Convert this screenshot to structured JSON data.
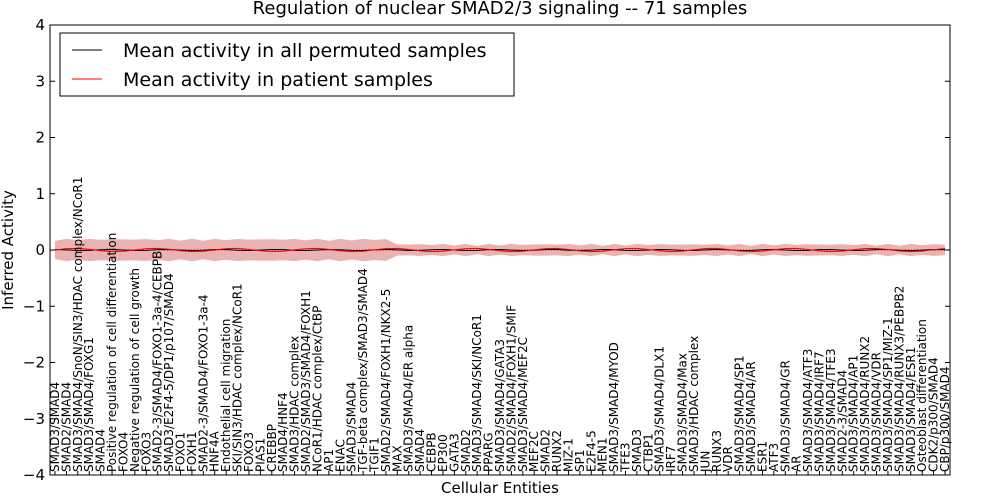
{
  "chart_data": {
    "type": "line",
    "title": "Regulation of nuclear SMAD2/3 signaling -- 71 samples",
    "xlabel": "Cellular Entities",
    "ylabel": "Inferred Activity",
    "ylim": [
      -4,
      4
    ],
    "yticks": [
      "4",
      "3",
      "2",
      "1",
      "0",
      "−1",
      "−2",
      "−3",
      "−4"
    ],
    "legend_position": "top-left",
    "grid": false,
    "series": [
      {
        "name": "Mean activity in all permuted samples",
        "color": "#000000"
      },
      {
        "name": "Mean activity in patient samples",
        "color": "#ff0000"
      }
    ],
    "categories": [
      "SMAD3/SMAD4",
      "SMAD2/SMAD4",
      "SMAD3/SMAD4/SnoN/SIN3/HDAC complex/NCoR1",
      "SMAD3/SMAD4/FOXG1",
      "SMAD4",
      "Positive regulation of cell differentiation",
      "FOXO4",
      "Negative regulation of cell growth",
      "FOXO3",
      "SMAD2-3/SMAD4/FOXO1-3a-4/CEBPB",
      "SMAD3/E2F4-5/DP1/p107/SMAD4",
      "FOXO1",
      "FOXH1",
      "SMAD2-3/SMAD4/FOXO1-3a-4",
      "HNF4A",
      "Endothelial cell migration",
      "SKI/SIN3/HDAC complex/NCoR1",
      "FOXO3",
      "PIAS1",
      "CREBBP",
      "SMAD4/HNF4",
      "SMAD3/HDAC complex",
      "SMAD2/SMAD3/SMAD4/FOXH1",
      "NCoR1/HDAC complex/CtBP",
      "AP1",
      "ENAC",
      "SMAD3/SMAD4",
      "TGF-beta complex/SMAD3/SMAD4",
      "TGIF1",
      "SMAD2/SMAD4/FOXH1/NKX2-5",
      "MAX",
      "SMAD3/SMAD4/ER alpha",
      "SMAD4",
      "CEBPB",
      "EP300",
      "GATA3",
      "SMAD2",
      "SMAD3/SMAD4/SKI/NCoR1",
      "PPARG",
      "SMAD3/SMAD4/GATA3",
      "SMAD2/SMAD4/FOXH1/SMIF",
      "SMAD3/SMAD4/MEF2C",
      "MEF2C",
      "SMAD2",
      "RUNX2",
      "MIZ-1",
      "SP1",
      "E2F4-5",
      "MEN1",
      "SMAD3/SMAD4/MYOD",
      "TFE3",
      "SMAD3",
      "CTBP1",
      "SMAD3/SMAD4/DLX1",
      "IRF7",
      "SMAD3/SMAD4/Max",
      "SMAD3/HDAC complex",
      "JUN",
      "RUNX3",
      "VDR",
      "SMAD3/SMAD4/SP1",
      "SMAD3/SMAD4/AR",
      "ESR1",
      "ATF3",
      "SMAD3/SMAD4/GR",
      "AR",
      "SMAD3/SMAD4/ATF3",
      "SMAD3/SMAD4/IRF7",
      "SMAD3/SMAD4/TFE3",
      "SMAD2-3/SMAD4",
      "SMAD3/SMAD4/AP1",
      "SMAD3/SMAD4/RUNX2",
      "SMAD3/SMAD4/VDR",
      "SMAD3/SMAD4/SP1/MIZ-1",
      "SMAD3/SMAD4/RUNX3/PEBPB2",
      "SMAD3/SMAD4/ESR1",
      "Osteoblast differentiation",
      "CDK2/p300/SMAD4",
      "CBP/p300/SMAD4"
    ]
  }
}
